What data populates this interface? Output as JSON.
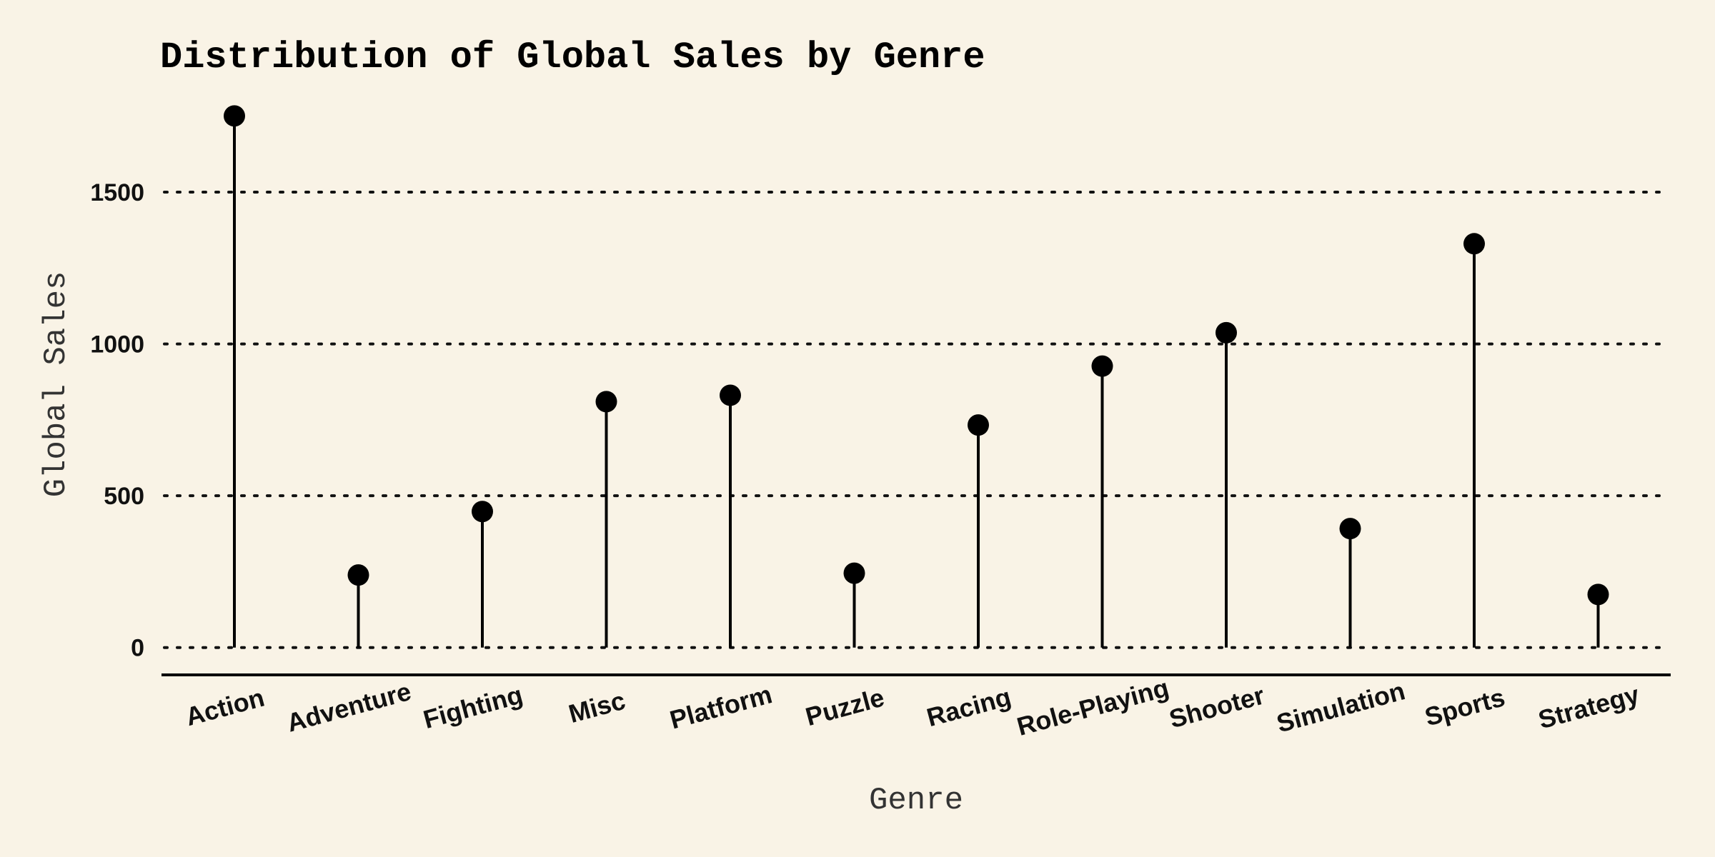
{
  "chart_data": {
    "type": "lollipop",
    "title": "Distribution of Global Sales by Genre",
    "xlabel": "Genre",
    "ylabel": "Global Sales",
    "categories": [
      "Action",
      "Adventure",
      "Fighting",
      "Misc",
      "Platform",
      "Puzzle",
      "Racing",
      "Role-Playing",
      "Shooter",
      "Simulation",
      "Sports",
      "Strategy"
    ],
    "values": [
      1751,
      239,
      448,
      810,
      831,
      245,
      733,
      927,
      1037,
      392,
      1330,
      175
    ],
    "ylim": [
      -90,
      1780
    ],
    "yticks": [
      0,
      500,
      1000,
      1500
    ],
    "grid": "horizontal-dotted",
    "legend": "none",
    "colors": {
      "background": "#f9f3e6",
      "marker": "#000000",
      "stem": "#000000"
    }
  }
}
